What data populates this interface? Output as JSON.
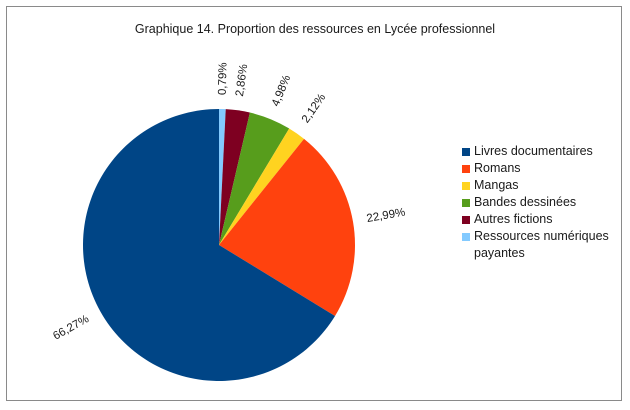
{
  "chart_data": {
    "type": "pie",
    "title": "Graphique 14. Proportion des ressources en Lycée professionnel",
    "legend_position": "right",
    "start_angle_deg": 0,
    "direction": "clockwise",
    "slices": [
      {
        "name": "Ressources numériques payantes",
        "value": 0.79,
        "label": "0,79%",
        "color": "#83caff"
      },
      {
        "name": "Autres fictions",
        "value": 2.86,
        "label": "2,86%",
        "color": "#7e0021"
      },
      {
        "name": "Bandes dessinées",
        "value": 4.98,
        "label": "4,98%",
        "color": "#579d1c"
      },
      {
        "name": "Mangas",
        "value": 2.12,
        "label": "2,12%",
        "color": "#ffd320"
      },
      {
        "name": "Romans",
        "value": 22.99,
        "label": "22,99%",
        "color": "#ff420e"
      },
      {
        "name": "Livres documentaires",
        "value": 66.27,
        "label": "66,27%",
        "color": "#004586"
      }
    ],
    "legend": [
      {
        "name": "Livres documentaires",
        "color": "#004586"
      },
      {
        "name": "Romans",
        "color": "#ff420e"
      },
      {
        "name": "Mangas",
        "color": "#ffd320"
      },
      {
        "name": "Bandes dessinées",
        "color": "#579d1c"
      },
      {
        "name": "Autres fictions",
        "color": "#7e0021"
      },
      {
        "name": "Ressources numériques payantes",
        "color": "#83caff"
      }
    ]
  }
}
